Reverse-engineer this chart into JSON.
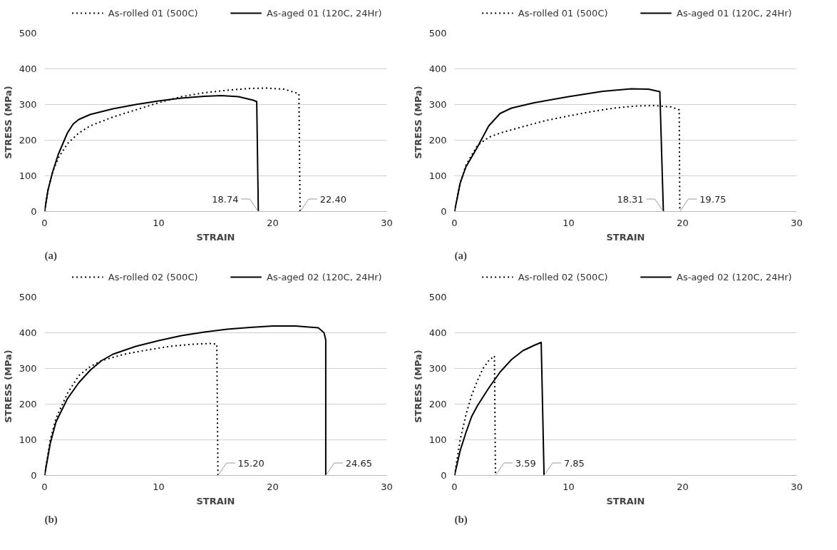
{
  "chart_data": [
    {
      "type": "line",
      "xlabel": "STRAIN",
      "ylabel": "STRESS (MPa)",
      "xlim": [
        0,
        30
      ],
      "ylim": [
        0,
        500
      ],
      "xticks": [
        0,
        10,
        20,
        30
      ],
      "yticks": [
        0,
        100,
        200,
        300,
        400,
        500
      ],
      "grid": "y",
      "legend": "top",
      "annotations": [
        {
          "text": "18.74",
          "x": 18.74,
          "y": 0
        },
        {
          "text": "22.40",
          "x": 22.4,
          "y": 0
        },
        "(a)"
      ],
      "series": [
        {
          "name": "As-rolled 01 (500C)",
          "color": "#000000",
          "line_style": "dotted",
          "x": [
            0,
            0.3,
            0.7,
            1.2,
            2,
            3,
            4,
            6,
            8,
            10,
            12,
            14,
            16,
            18,
            19.5,
            21,
            22.3,
            22.4
          ],
          "values": [
            0,
            60,
            110,
            150,
            190,
            220,
            240,
            265,
            285,
            305,
            322,
            333,
            340,
            345,
            346,
            343,
            330,
            0
          ]
        },
        {
          "name": "As-aged 01 (120C, 24Hr)",
          "color": "#000000",
          "line_style": "solid",
          "x": [
            0,
            0.3,
            0.7,
            1.2,
            2,
            2.5,
            3,
            4,
            6,
            8,
            10,
            12,
            14,
            15.5,
            17,
            18.3,
            18.6,
            18.74
          ],
          "values": [
            0,
            60,
            110,
            160,
            220,
            245,
            258,
            272,
            288,
            300,
            310,
            318,
            323,
            325,
            322,
            312,
            308,
            0
          ]
        }
      ]
    },
    {
      "type": "line",
      "xlabel": "STRAIN",
      "ylabel": "STRESS (MPa)",
      "xlim": [
        0,
        30
      ],
      "ylim": [
        0,
        500
      ],
      "xticks": [
        0,
        10,
        20,
        30
      ],
      "yticks": [
        0,
        100,
        200,
        300,
        400,
        500
      ],
      "grid": "y",
      "legend": "top",
      "annotations": [
        {
          "text": "18.31",
          "x": 18.31,
          "y": 0
        },
        {
          "text": "19.75",
          "x": 19.75,
          "y": 0
        },
        "(a)"
      ],
      "series": [
        {
          "name": "As-rolled 01  (500C)",
          "color": "#000000",
          "line_style": "dotted",
          "x": [
            0,
            0.5,
            1,
            2,
            3,
            4,
            6,
            8,
            10,
            12,
            14,
            16,
            17.5,
            19,
            19.7,
            19.75
          ],
          "values": [
            0,
            80,
            130,
            185,
            208,
            220,
            238,
            255,
            268,
            280,
            290,
            296,
            297,
            293,
            285,
            0
          ]
        },
        {
          "name": "As-aged 01 (120C, 24Hr)",
          "color": "#000000",
          "line_style": "solid",
          "x": [
            0,
            0.5,
            1,
            2,
            3,
            4,
            5,
            7,
            10,
            13,
            15.5,
            17,
            18,
            18.31
          ],
          "values": [
            0,
            80,
            125,
            180,
            240,
            275,
            290,
            305,
            322,
            337,
            344,
            343,
            336,
            0
          ]
        }
      ]
    },
    {
      "type": "line",
      "xlabel": "STRAIN",
      "ylabel": "STRESS (MPa)",
      "xlim": [
        0,
        30
      ],
      "ylim": [
        0,
        500
      ],
      "xticks": [
        0,
        10,
        20,
        30
      ],
      "yticks": [
        0,
        100,
        200,
        300,
        400,
        500
      ],
      "grid": "y",
      "legend": "top",
      "annotations": [
        {
          "text": "15.20",
          "x": 15.2,
          "y": 0
        },
        {
          "text": "24.65",
          "x": 24.65,
          "y": 0
        },
        "(b)"
      ],
      "series": [
        {
          "name": "As-rolled 02 (500C)",
          "color": "#000000",
          "line_style": "dotted",
          "x": [
            0,
            0.5,
            1,
            2,
            3,
            4,
            5,
            7,
            9,
            11,
            13,
            14.5,
            15.1,
            15.2
          ],
          "values": [
            0,
            100,
            160,
            230,
            280,
            305,
            322,
            340,
            352,
            362,
            368,
            370,
            368,
            0
          ]
        },
        {
          "name": "As-aged 02 (120C, 24Hr)",
          "color": "#000000",
          "line_style": "solid",
          "x": [
            0,
            0.5,
            1,
            2,
            3,
            4,
            5,
            6,
            8,
            10,
            12,
            14,
            16,
            18,
            20,
            22,
            24,
            24.5,
            24.65,
            24.65
          ],
          "values": [
            0,
            90,
            150,
            215,
            260,
            295,
            322,
            340,
            362,
            378,
            392,
            402,
            410,
            415,
            419,
            419,
            414,
            400,
            380,
            0
          ]
        }
      ]
    },
    {
      "type": "line",
      "xlabel": "STRAIN",
      "ylabel": "STRESS (MPa)",
      "xlim": [
        0,
        30
      ],
      "ylim": [
        0,
        500
      ],
      "xticks": [
        0,
        10,
        20,
        30
      ],
      "yticks": [
        0,
        100,
        200,
        300,
        400,
        500
      ],
      "grid": "y",
      "legend": "top",
      "annotations": [
        {
          "text": "3.59",
          "x": 3.59,
          "y": 0
        },
        {
          "text": "7.85",
          "x": 7.85,
          "y": 0
        },
        "(b)"
      ],
      "series": [
        {
          "name": "As-rolled 02  (500C)",
          "color": "#000000",
          "line_style": "dotted",
          "x": [
            0,
            0.5,
            1,
            1.5,
            2,
            2.5,
            3,
            3.5,
            3.59
          ],
          "values": [
            0,
            100,
            170,
            225,
            265,
            300,
            322,
            335,
            0
          ]
        },
        {
          "name": "As-aged 02 (120C, 24Hr)",
          "color": "#000000",
          "line_style": "solid",
          "x": [
            0,
            0.5,
            1,
            1.5,
            2,
            3,
            4,
            5,
            6,
            7,
            7.6,
            7.85
          ],
          "values": [
            0,
            70,
            120,
            165,
            195,
            245,
            290,
            325,
            350,
            365,
            373,
            0
          ]
        }
      ]
    }
  ]
}
